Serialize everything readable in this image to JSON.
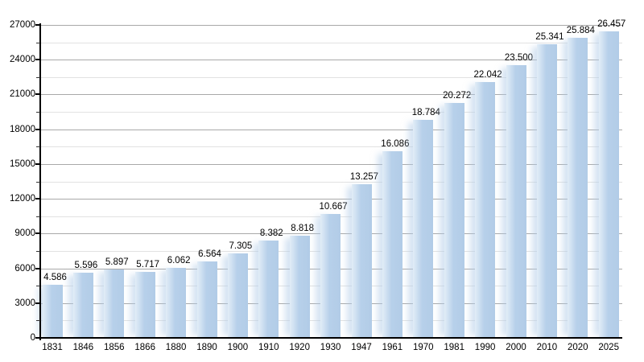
{
  "chart_data": {
    "type": "bar",
    "title": "",
    "xlabel": "",
    "ylabel": "",
    "categories": [
      "1831",
      "1846",
      "1856",
      "1866",
      "1880",
      "1890",
      "1900",
      "1910",
      "1920",
      "1930",
      "1947",
      "1961",
      "1970",
      "1981",
      "1990",
      "2000",
      "2010",
      "2020",
      "2025"
    ],
    "values": [
      4586,
      5596,
      5897,
      5717,
      6062,
      6564,
      7305,
      8382,
      8818,
      10667,
      13257,
      16086,
      18784,
      20272,
      22042,
      23500,
      25341,
      25884,
      26457
    ],
    "value_labels": [
      "4.586",
      "5.596",
      "5.897",
      "5.717",
      "6.062",
      "6.564",
      "7.305",
      "8.382",
      "8.818",
      "10.667",
      "13.257",
      "16.086",
      "18.784",
      "20.272",
      "22.042",
      "23.500",
      "25.341",
      "25.884",
      "26.457"
    ],
    "ylim": [
      0,
      27000
    ],
    "ytick_step": 3000,
    "yminor_step": 1500,
    "y_tick_labels": [
      "0",
      "3000",
      "6000",
      "9000",
      "12000",
      "15000",
      "18000",
      "21000",
      "24000",
      "27000"
    ],
    "grid": true,
    "legend": false,
    "colors": {
      "bar": "#b2cce7",
      "bar_light": "#e2edf7",
      "grid_major": "#a9a9a9",
      "grid_minor": "#e2e2e2",
      "axis": "#000000",
      "text": "#000000",
      "background": "#ffffff"
    }
  }
}
